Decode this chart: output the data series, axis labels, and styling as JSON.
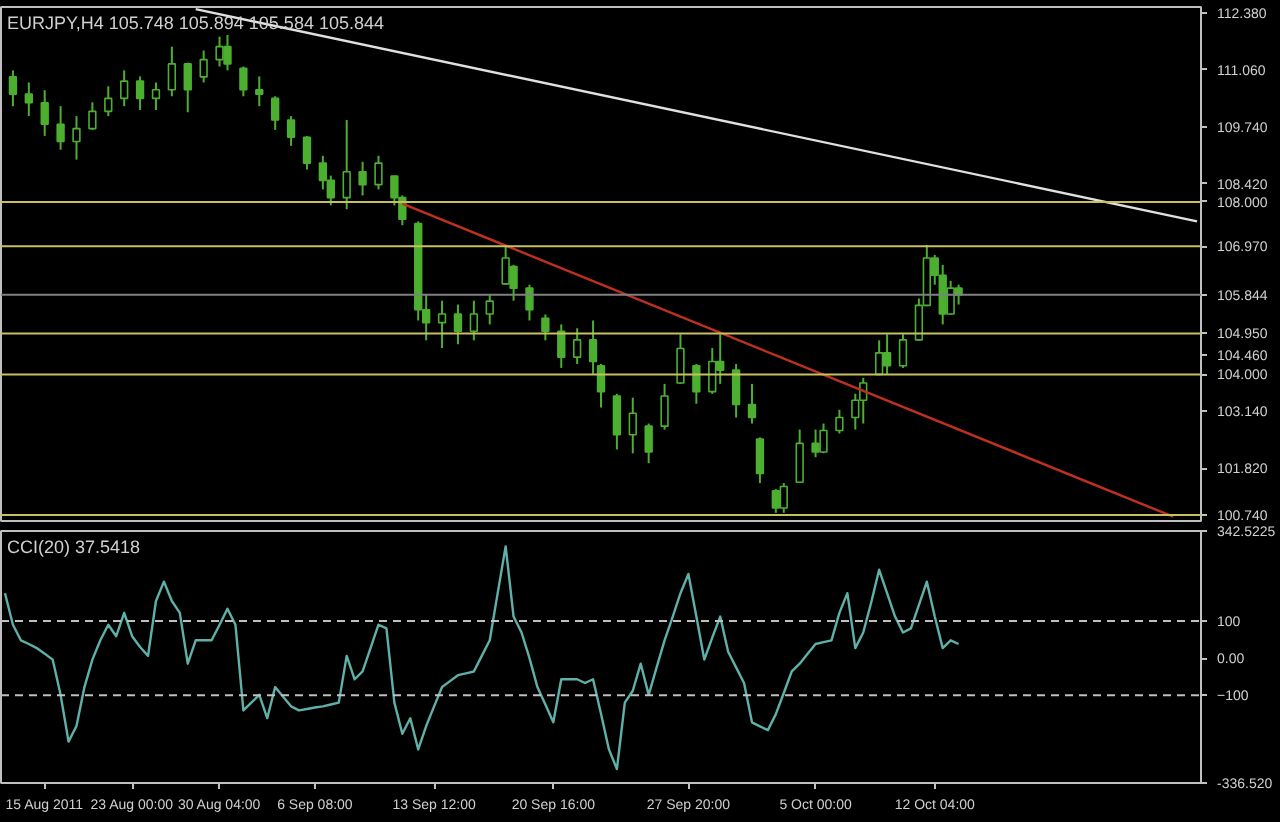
{
  "chart_data": [
    {
      "type": "candlestick",
      "title": "EURJPY,H4  105.748 105.894 105.584 105.844",
      "categories": [
        null,
        null,
        null,
        null,
        null,
        null,
        null,
        null,
        null,
        null,
        null,
        null,
        null,
        null,
        null,
        null,
        null,
        null,
        null,
        null,
        null,
        null,
        null,
        null,
        null,
        null,
        null,
        null,
        null,
        null,
        null,
        null,
        null,
        null,
        null,
        null,
        null,
        null,
        null,
        null,
        null,
        null,
        null,
        null,
        null,
        null,
        null,
        null,
        null,
        null,
        null,
        null,
        null,
        null,
        null,
        null,
        null,
        null,
        null,
        null,
        null,
        null,
        null,
        null,
        null,
        null,
        null,
        null,
        null,
        null,
        null,
        null,
        null,
        null,
        null,
        null,
        null,
        null,
        null,
        null,
        null,
        null,
        null,
        null,
        null,
        null,
        null,
        null,
        null,
        null,
        null,
        null,
        null,
        null,
        null,
        null,
        null,
        null,
        null,
        null,
        null,
        null,
        null,
        null,
        null,
        null,
        null,
        null,
        null,
        null,
        null,
        null,
        null,
        null,
        null,
        null,
        null,
        null,
        null,
        null,
        null,
        null,
        null,
        null,
        null,
        null,
        null,
        null,
        null,
        null,
        null,
        null,
        null,
        null,
        null,
        null,
        null,
        null,
        null,
        null,
        null,
        null,
        null,
        null,
        null,
        null,
        null,
        null,
        null,
        null,
        null
      ],
      "series": [
        {
          "type": "candlestick",
          "color": "#4caf30",
          "ohlc": [
            null,
            [
              110.9,
              111.05,
              110.22,
              110.5
            ],
            null,
            [
              110.5,
              110.77,
              109.99,
              110.3
            ],
            null,
            [
              110.3,
              110.59,
              109.53,
              109.8
            ],
            null,
            [
              109.8,
              110.22,
              109.21,
              109.4
            ],
            null,
            [
              109.4,
              109.99,
              108.98,
              109.7
            ],
            null,
            [
              109.7,
              110.31,
              109.67,
              110.1
            ],
            null,
            [
              110.1,
              110.68,
              109.99,
              110.4
            ],
            null,
            [
              110.4,
              111.05,
              110.22,
              110.8
            ],
            null,
            [
              110.8,
              110.91,
              110.13,
              110.4
            ],
            null,
            [
              110.4,
              110.77,
              110.13,
              110.6
            ],
            null,
            [
              110.6,
              111.6,
              110.45,
              111.2
            ],
            null,
            [
              111.2,
              111.23,
              110.08,
              110.6
            ],
            null,
            [
              110.9,
              111.51,
              110.77,
              111.3
            ],
            null,
            [
              111.3,
              111.83,
              111.14,
              111.6
            ],
            [
              111.6,
              111.87,
              111.05,
              111.2
            ],
            null,
            [
              111.1,
              111.14,
              110.45,
              110.6
            ],
            null,
            [
              110.6,
              110.91,
              110.22,
              110.5
            ],
            null,
            [
              110.4,
              110.45,
              109.67,
              109.9
            ],
            null,
            [
              109.9,
              109.99,
              109.3,
              109.5
            ],
            null,
            [
              109.5,
              109.53,
              108.75,
              108.9
            ],
            null,
            [
              108.9,
              109.07,
              108.29,
              108.5
            ],
            [
              108.5,
              108.61,
              107.92,
              108.1
            ],
            null,
            [
              108.1,
              109.9,
              107.83,
              108.7
            ],
            null,
            [
              108.7,
              108.93,
              108.15,
              108.4
            ],
            null,
            [
              108.4,
              109.07,
              108.29,
              108.9
            ],
            null,
            [
              108.6,
              108.61,
              107.92,
              108.1
            ],
            [
              108.1,
              108.15,
              107.46,
              107.6
            ],
            null,
            [
              107.5,
              107.55,
              105.25,
              105.5
            ],
            [
              105.5,
              105.85,
              104.79,
              105.2
            ],
            null,
            [
              105.2,
              105.71,
              104.61,
              105.4
            ],
            null,
            [
              105.4,
              105.62,
              104.7,
              105.0
            ],
            null,
            [
              105.0,
              105.71,
              104.79,
              105.4
            ],
            null,
            [
              105.4,
              105.85,
              105.16,
              105.7
            ],
            null,
            [
              106.1,
              107.0,
              106.08,
              106.7
            ],
            [
              106.5,
              106.54,
              105.71,
              106.0
            ],
            null,
            [
              106.0,
              106.08,
              105.25,
              105.5
            ],
            null,
            [
              105.3,
              105.39,
              104.79,
              105.0
            ],
            null,
            [
              105.0,
              105.16,
              104.15,
              104.4
            ],
            null,
            [
              104.4,
              105.07,
              104.24,
              104.8
            ],
            null,
            [
              104.8,
              105.25,
              104.01,
              104.3
            ],
            [
              104.2,
              104.24,
              103.23,
              103.6
            ],
            null,
            [
              103.5,
              103.55,
              102.26,
              102.6
            ],
            null,
            [
              102.6,
              103.46,
              102.17,
              103.1
            ],
            null,
            [
              102.8,
              102.86,
              101.94,
              102.2
            ],
            null,
            [
              102.8,
              103.78,
              102.72,
              103.5
            ],
            null,
            [
              103.8,
              104.93,
              103.78,
              104.6
            ],
            null,
            [
              104.2,
              104.24,
              103.32,
              103.6
            ],
            null,
            [
              103.6,
              104.61,
              103.55,
              104.3
            ],
            [
              104.3,
              104.93,
              103.78,
              104.1
            ],
            null,
            [
              104.1,
              104.24,
              103.0,
              103.3
            ],
            null,
            [
              103.3,
              103.78,
              102.86,
              103.0
            ],
            [
              102.5,
              102.54,
              101.48,
              101.7
            ],
            null,
            [
              101.3,
              101.34,
              100.79,
              100.9
            ],
            [
              100.9,
              101.48,
              100.79,
              101.4
            ],
            null,
            [
              101.5,
              102.72,
              101.48,
              102.4
            ],
            null,
            [
              102.4,
              102.72,
              102.08,
              102.2
            ],
            [
              102.2,
              102.86,
              102.17,
              102.7
            ],
            null,
            [
              102.7,
              103.18,
              102.63,
              103.0
            ],
            null,
            [
              103.0,
              103.55,
              102.72,
              103.4
            ],
            [
              103.4,
              103.92,
              102.86,
              103.8
            ],
            null,
            [
              104.0,
              104.79,
              103.98,
              104.5
            ],
            [
              104.5,
              104.93,
              104.01,
              104.2
            ],
            null,
            [
              104.2,
              104.93,
              104.15,
              104.8
            ],
            null,
            [
              104.8,
              105.76,
              104.78,
              105.6
            ],
            [
              105.6,
              107.0,
              105.58,
              106.7
            ],
            [
              106.7,
              106.77,
              106.08,
              106.3
            ],
            [
              106.3,
              106.54,
              105.16,
              105.4
            ],
            [
              105.4,
              106.17,
              105.38,
              106.0
            ],
            [
              106.0,
              106.08,
              105.62,
              105.844
            ],
            null,
            null,
            null,
            null,
            null,
            null,
            null,
            null,
            null,
            null,
            null,
            null,
            null,
            null,
            null,
            null,
            null,
            null,
            null,
            null,
            null,
            null,
            null,
            null,
            null,
            null,
            null,
            null,
            null,
            null
          ]
        },
        {
          "type": "line",
          "color": "#e0e0e0",
          "values": [
            null,
            null,
            null,
            null,
            null,
            null,
            null,
            null,
            null,
            null,
            null,
            null,
            null,
            null,
            null,
            null,
            null,
            null,
            null,
            null,
            null,
            null,
            null,
            null,
            112.47,
            null,
            null,
            null,
            null,
            null,
            null,
            null,
            null,
            null,
            null,
            null,
            null,
            null,
            null,
            null,
            null,
            null,
            null,
            null,
            null,
            null,
            null,
            null,
            null,
            null,
            null,
            null,
            null,
            null,
            null,
            null,
            null,
            null,
            null,
            null,
            null,
            null,
            null,
            null,
            null,
            null,
            null,
            null,
            null,
            null,
            null,
            null,
            null,
            null,
            null,
            null,
            null,
            null,
            null,
            null,
            null,
            null,
            null,
            null,
            null,
            null,
            null,
            null,
            null,
            null,
            null,
            null,
            null,
            null,
            null,
            null,
            null,
            null,
            null,
            null,
            null,
            null,
            null,
            null,
            null,
            null,
            null,
            null,
            null,
            null,
            null,
            null,
            null,
            null,
            null,
            null,
            null,
            null,
            null,
            null,
            null,
            null,
            null,
            null,
            null,
            null,
            null,
            null,
            null,
            null,
            null,
            null,
            null,
            null,
            null,
            null,
            null,
            null,
            null,
            null,
            null,
            null,
            null,
            null,
            null,
            null,
            null,
            null,
            null,
            null,
            107.55
          ]
        },
        {
          "type": "line",
          "color": "#c03020",
          "values": [
            null,
            null,
            null,
            null,
            null,
            null,
            null,
            null,
            null,
            null,
            null,
            null,
            null,
            null,
            null,
            null,
            null,
            null,
            null,
            null,
            null,
            null,
            null,
            null,
            null,
            null,
            null,
            null,
            null,
            null,
            null,
            null,
            null,
            null,
            null,
            null,
            null,
            null,
            null,
            null,
            null,
            null,
            null,
            null,
            null,
            null,
            null,
            null,
            null,
            null,
            107.96,
            null,
            null,
            null,
            null,
            null,
            null,
            null,
            null,
            null,
            null,
            null,
            null,
            null,
            null,
            null,
            null,
            null,
            null,
            null,
            null,
            null,
            null,
            null,
            null,
            null,
            null,
            null,
            null,
            null,
            null,
            null,
            null,
            null,
            null,
            null,
            null,
            null,
            null,
            null,
            null,
            null,
            null,
            null,
            null,
            null,
            null,
            null,
            null,
            null,
            null,
            null,
            null,
            null,
            null,
            null,
            null,
            null,
            null,
            null,
            null,
            null,
            null,
            null,
            null,
            null,
            null,
            null,
            null,
            null,
            null,
            null,
            null,
            null,
            null,
            null,
            null,
            null,
            null,
            null,
            null,
            null,
            null,
            null,
            null,
            null,
            null,
            null,
            null,
            null,
            null,
            null,
            null,
            null,
            null,
            null,
            null,
            100.7,
            null,
            null,
            null
          ]
        }
      ],
      "ylim": [
        100.6,
        112.52
      ],
      "yticks": [
        {
          "value": 112.38,
          "label": "112.380"
        },
        {
          "value": 111.06,
          "label": "111.060"
        },
        {
          "value": 109.74,
          "label": "109.740"
        },
        {
          "value": 108.42,
          "label": "108.420"
        },
        {
          "value": 104.46,
          "label": "104.460"
        },
        {
          "value": 103.14,
          "label": "103.140"
        },
        {
          "value": 101.82,
          "label": "101.820"
        }
      ],
      "ref_lines": [
        {
          "axis": "y",
          "value": 108.0,
          "label": "108.000",
          "color": "#c8c060"
        },
        {
          "axis": "y",
          "value": 106.97,
          "label": "106.970",
          "color": "#c8c060"
        },
        {
          "axis": "y",
          "value": 105.844,
          "label": "105.844",
          "color": "#808080"
        },
        {
          "axis": "y",
          "value": 104.95,
          "label": "104.950",
          "color": "#c8c060"
        },
        {
          "axis": "y",
          "value": 104.0,
          "label": "104.000",
          "color": "#c8c060"
        },
        {
          "axis": "y",
          "value": 100.74,
          "label": "100.740",
          "color": "#c8c060"
        }
      ],
      "tick_labels": "y",
      "grid": false
    },
    {
      "type": "line",
      "title": "CCI(20) 37.5418",
      "categories": [
        null,
        null,
        null,
        null,
        null,
        "15 Aug 2011",
        null,
        null,
        null,
        null,
        null,
        null,
        null,
        null,
        null,
        null,
        "23 Aug 00:00",
        null,
        null,
        null,
        null,
        null,
        null,
        null,
        null,
        null,
        null,
        "30 Aug 04:00",
        null,
        null,
        null,
        null,
        null,
        null,
        null,
        null,
        null,
        null,
        null,
        "6 Sep 08:00",
        null,
        null,
        null,
        null,
        null,
        null,
        null,
        null,
        null,
        null,
        null,
        null,
        null,
        null,
        "13 Sep 12:00",
        null,
        null,
        null,
        null,
        null,
        null,
        null,
        null,
        null,
        null,
        null,
        null,
        null,
        null,
        "20 Sep 16:00",
        null,
        null,
        null,
        null,
        null,
        null,
        null,
        null,
        null,
        null,
        null,
        null,
        null,
        null,
        null,
        null,
        "27 Sep 20:00",
        null,
        null,
        null,
        null,
        null,
        null,
        null,
        null,
        null,
        null,
        null,
        null,
        null,
        null,
        null,
        "5 Oct 00:00",
        null,
        null,
        null,
        null,
        null,
        null,
        null,
        null,
        null,
        null,
        null,
        null,
        null,
        null,
        "12 Oct 04:00",
        null,
        null,
        null,
        null,
        null,
        null,
        null,
        null,
        null,
        null,
        null,
        null,
        null,
        null,
        null,
        null,
        null,
        null,
        null,
        null,
        null,
        null,
        null,
        null,
        null,
        null,
        null,
        null,
        null,
        null,
        null,
        null,
        null
      ],
      "series": [
        {
          "color": "#5fb0a8",
          "values": [
            175,
            90,
            48,
            38,
            27,
            12,
            -4,
            -99,
            -225,
            -183,
            -78,
            -4,
            48,
            90,
            59,
            122,
            59,
            30,
            6,
            154,
            206,
            154,
            122,
            -15,
            48,
            48,
            48,
            90,
            133,
            90,
            -141,
            -120,
            -99,
            -162,
            -78,
            -104,
            -130,
            -141,
            -137,
            -133,
            -130,
            -125,
            -120,
            6,
            -57,
            -36,
            27,
            90,
            80,
            -120,
            -204,
            -162,
            -246,
            -183,
            -130,
            -78,
            -62,
            -46,
            -41,
            -36,
            6,
            48,
            175,
            301,
            112,
            69,
            0,
            -78,
            -125,
            -173,
            -57,
            -57,
            -57,
            -67,
            -57,
            -150,
            -246,
            -299,
            -120,
            -88,
            -15,
            -99,
            -25,
            48,
            110,
            175,
            227,
            112,
            -4,
            55,
            112,
            17,
            -25,
            -67,
            -173,
            -184,
            -194,
            -151,
            -94,
            -36,
            -15,
            12,
            38,
            43,
            48,
            122,
            175,
            27,
            69,
            150,
            238,
            175,
            112,
            69,
            80,
            143,
            206,
            112,
            27,
            48,
            38,
            null,
            null,
            null,
            null,
            null,
            null,
            null,
            null,
            null,
            null,
            null,
            null,
            null,
            null,
            null,
            null,
            null,
            null,
            null,
            null,
            null,
            null,
            null,
            null,
            null,
            null,
            null,
            null,
            null,
            null
          ]
        }
      ],
      "ylim": [
        -336.52,
        342.5225
      ],
      "yticks": [
        {
          "value": 342.5225,
          "label": "342.5225"
        },
        100,
        {
          "value": 0,
          "label": "0.00"
        },
        -100,
        {
          "value": -336.52,
          "label": "-336.520"
        }
      ],
      "ref_lines": [
        {
          "axis": "y",
          "value": 100,
          "color": "#c0c0c0",
          "line_style": "dashed"
        },
        {
          "axis": "y",
          "value": -100,
          "color": "#c0c0c0",
          "line_style": "dashed"
        }
      ],
      "grid": false
    }
  ]
}
